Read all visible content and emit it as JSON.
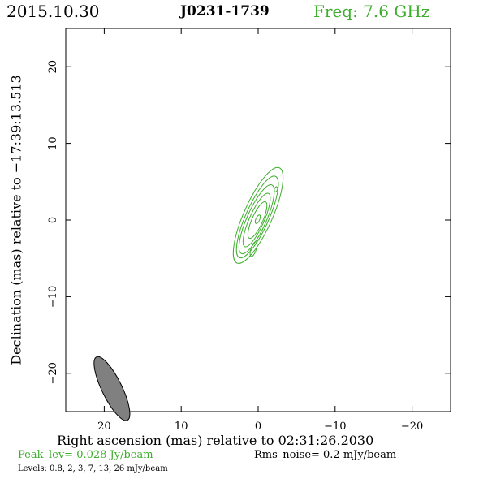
{
  "header": {
    "date": "2015.10.30",
    "source": "J0231-1739",
    "freq_label": "Freq: 7.6 GHz"
  },
  "footer": {
    "peak": "Peak_lev=  0.028 Jy/beam",
    "rms": "Rms_noise=   0.2 mJy/beam",
    "levels": "Levels: 0.8,    2,    3,    7,   13,   26 mJy/beam"
  },
  "colors": {
    "contour": "#3cae2c",
    "beam_fill": "#808080",
    "text": "#000000"
  },
  "chart_data": {
    "type": "contour",
    "title": "J0231-1739",
    "xlabel": "Right ascension (mas) relative to 02:31:26.2030",
    "ylabel": "Declination (mas) relative to −17:39:13.513",
    "xlim": [
      25,
      -25
    ],
    "ylim": [
      -25,
      25
    ],
    "x_ticks": [
      20,
      10,
      0,
      -10,
      -20
    ],
    "x_tick_labels": [
      "20",
      "10",
      "0",
      "−10",
      "−20"
    ],
    "y_ticks": [
      -20,
      -10,
      0,
      10,
      20
    ],
    "y_tick_labels": [
      "−20",
      "−10",
      "0",
      "10",
      "20"
    ],
    "peak_jy_per_beam": 0.028,
    "rms_mjy_per_beam": 0.2,
    "levels_mjy_per_beam": [
      0.8,
      2,
      3,
      7,
      13,
      26
    ],
    "contours": [
      {
        "level": 0.8,
        "cx": 0.0,
        "cy": 0.6,
        "a": 6.8,
        "b": 1.85,
        "pa": 24
      },
      {
        "level": 2,
        "cx": 0.1,
        "cy": 0.4,
        "a": 5.8,
        "b": 1.5,
        "pa": 24
      },
      {
        "level": 3,
        "cx": 0.2,
        "cy": 0.1,
        "a": 4.9,
        "b": 1.25,
        "pa": 24
      },
      {
        "level": 7,
        "cx": 0.2,
        "cy": 0.0,
        "a": 3.8,
        "b": 0.95,
        "pa": 24
      },
      {
        "level": 13,
        "cx": 0.1,
        "cy": 0.0,
        "a": 2.6,
        "b": 0.7,
        "pa": 24
      },
      {
        "level": 26,
        "cx": 0.05,
        "cy": 0.1,
        "a": 0.6,
        "b": 0.25,
        "pa": 24
      }
    ],
    "extra_contours": [
      {
        "level": 0.8,
        "cx": 0.6,
        "cy": -3.8,
        "a": 1.0,
        "b": 0.35,
        "pa": 18
      },
      {
        "level": 0.8,
        "cx": -2.3,
        "cy": 4.0,
        "a": 0.35,
        "b": 0.2,
        "pa": 20
      }
    ],
    "beam": {
      "cx": 19.0,
      "cy": -22.0,
      "major": 4.6,
      "minor": 1.3,
      "pa": 26
    }
  }
}
